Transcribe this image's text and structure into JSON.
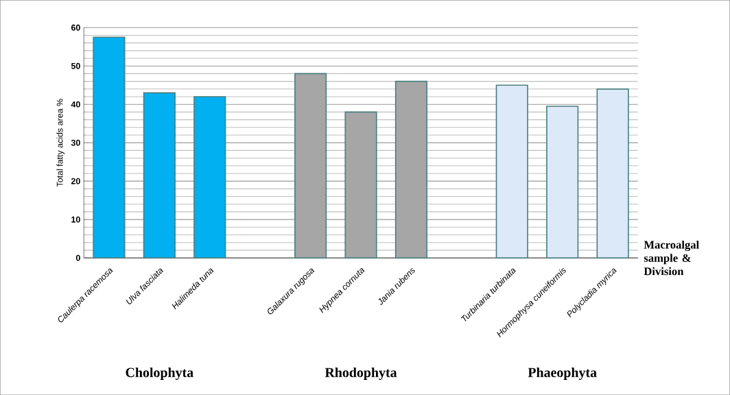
{
  "chart_data": {
    "type": "bar",
    "ylabel": "Total fatty acids area %",
    "xlabel": "Macroalgal sample & Division",
    "categories": [
      "Caulerpa  racemosa",
      "Ulva fasciata",
      "Halimeda tuna",
      null,
      "Galaxura rugosa",
      "Hypnea cornuta",
      "Jania rubens",
      null,
      "Turbinaria  turbinata",
      "Hormophysa cuneiformis",
      "Polycladia myrica"
    ],
    "values": [
      57.5,
      43,
      42,
      null,
      48,
      38,
      46,
      null,
      45,
      39.5,
      44
    ],
    "colors": [
      "#00b0f0",
      "#00b0f0",
      "#00b0f0",
      null,
      "#a6a6a6",
      "#a6a6a6",
      "#a6a6a6",
      null,
      "#dce9f8",
      "#dce9f8",
      "#dce9f8"
    ],
    "ylim": [
      0,
      60
    ],
    "yticks": [
      0,
      10,
      20,
      30,
      40,
      50,
      60
    ],
    "grid": "y",
    "annotations": [
      "Cholophyta",
      "Rhodophyta",
      "Phaeophyta"
    ]
  }
}
